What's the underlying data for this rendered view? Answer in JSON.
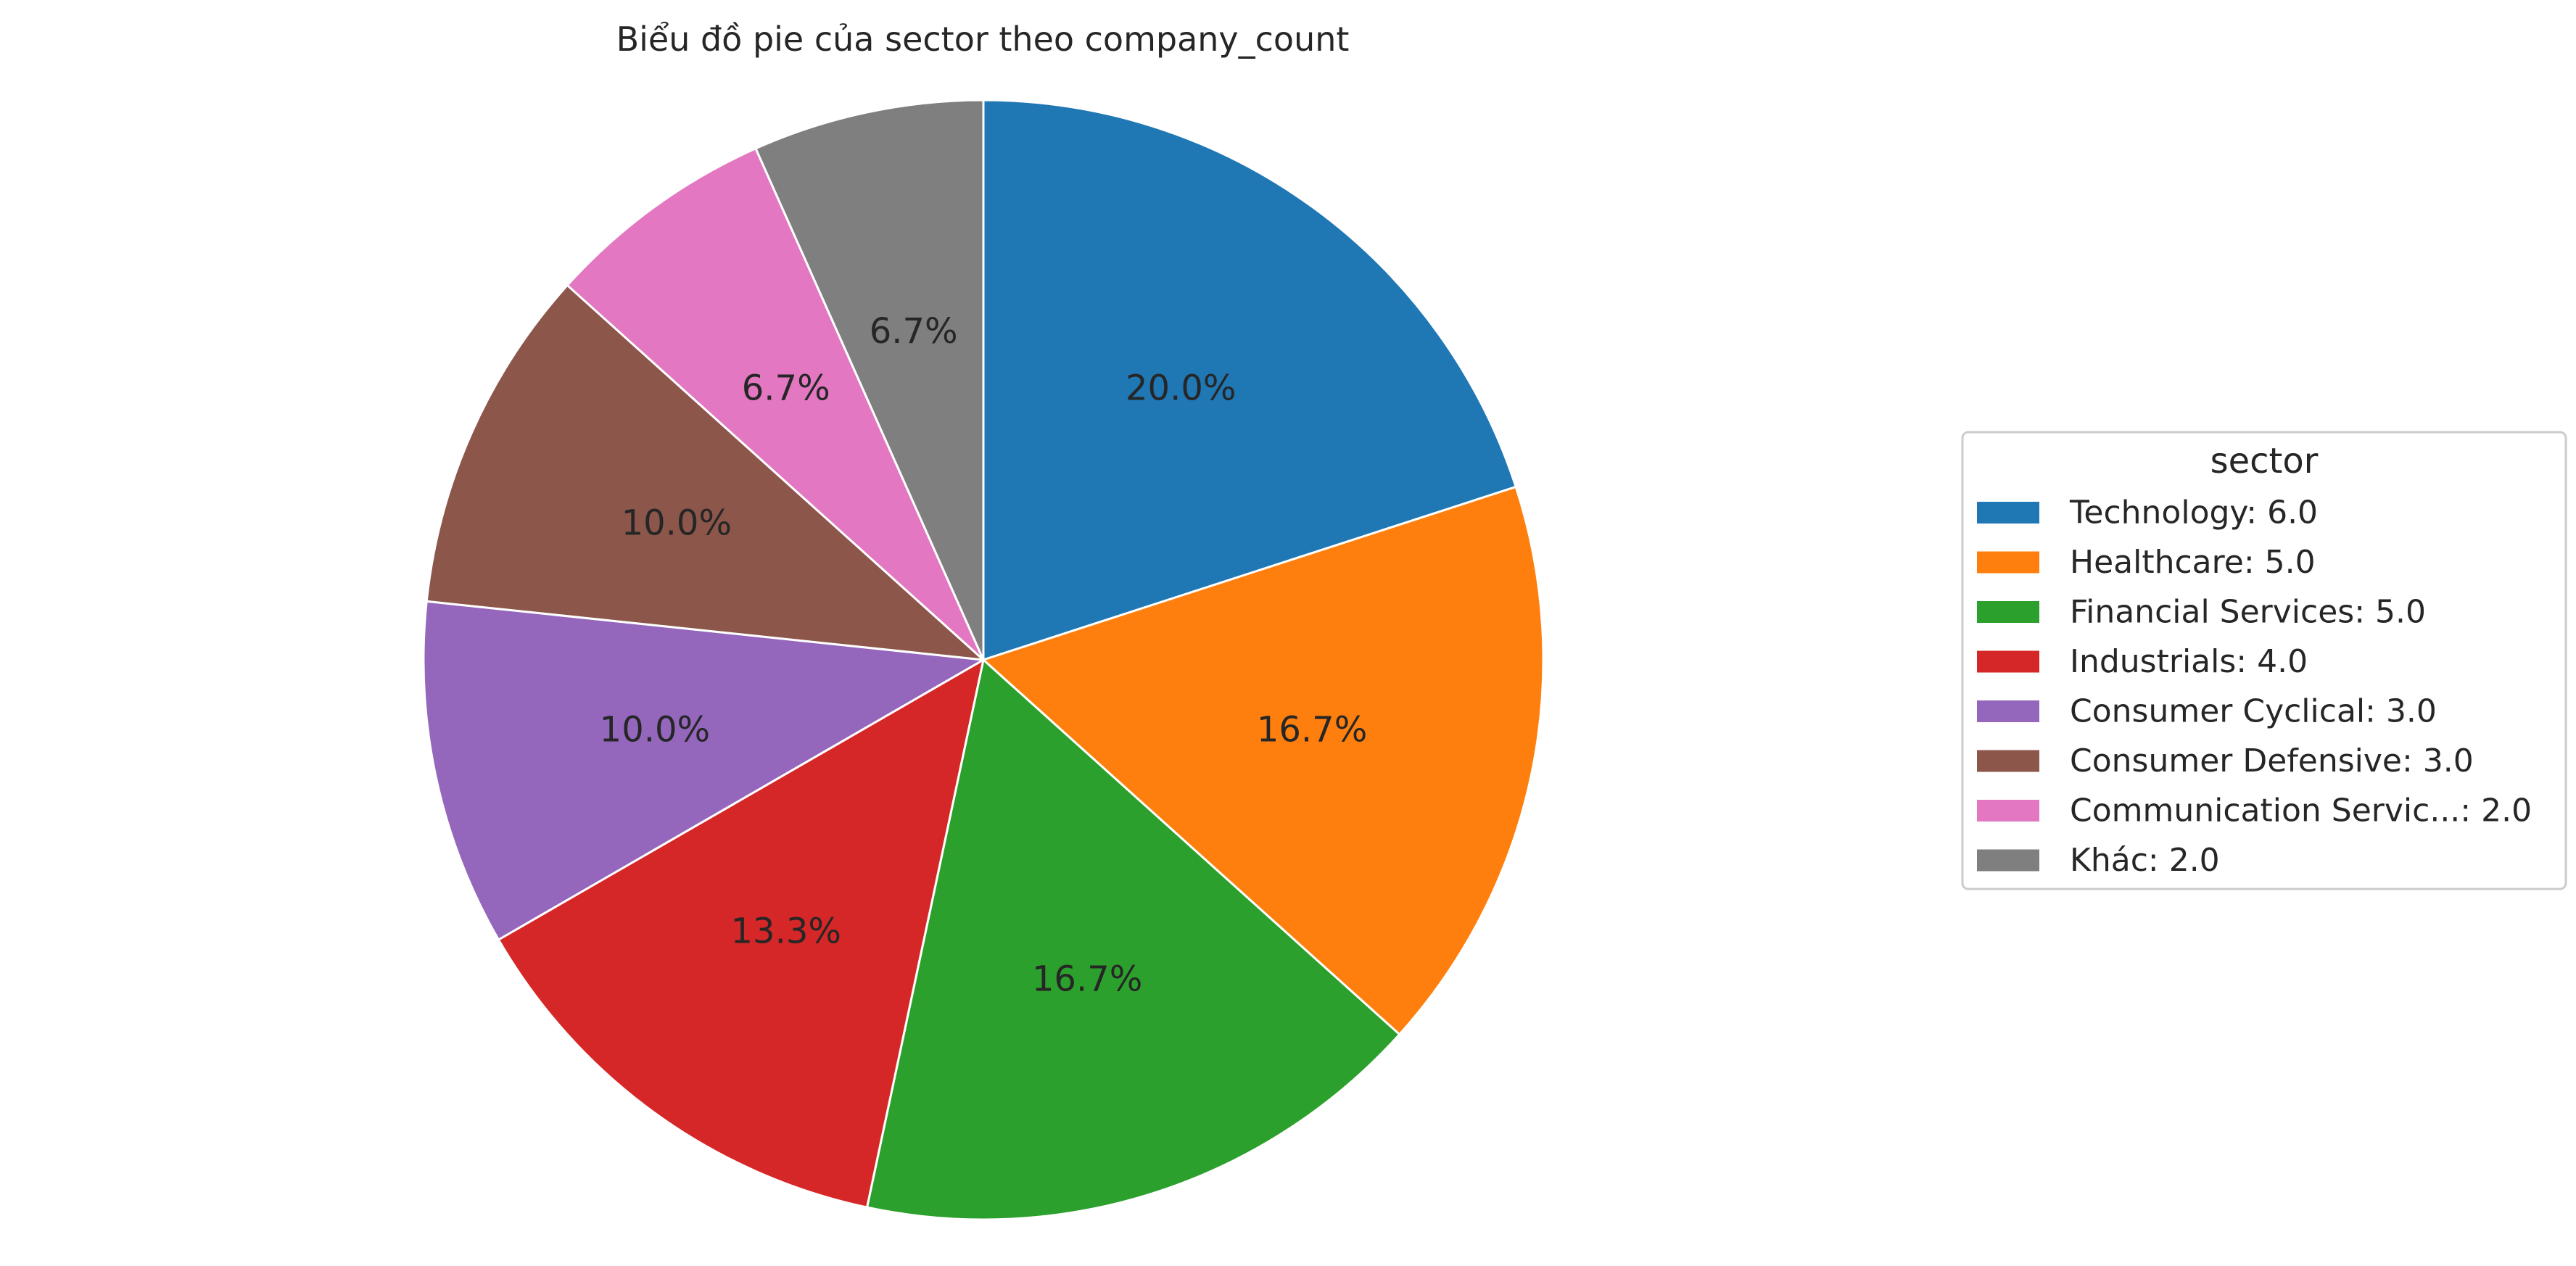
{
  "chart_data": {
    "type": "pie",
    "title": "Biểu đồ pie của sector theo company_count",
    "legend_title": "sector",
    "legend_placement": "center-right",
    "start_angle_deg": 90,
    "direction": "clockwise",
    "slices": [
      {
        "label": "Technology",
        "value": 6.0,
        "percent_label": "20.0%",
        "legend_label": "Technology: 6.0",
        "color": "#1f77b4"
      },
      {
        "label": "Healthcare",
        "value": 5.0,
        "percent_label": "16.7%",
        "legend_label": "Healthcare: 5.0",
        "color": "#ff7f0e"
      },
      {
        "label": "Financial Services",
        "value": 5.0,
        "percent_label": "16.7%",
        "legend_label": "Financial Services: 5.0",
        "color": "#2ca02c"
      },
      {
        "label": "Industrials",
        "value": 4.0,
        "percent_label": "13.3%",
        "legend_label": "Industrials: 4.0",
        "color": "#d62728"
      },
      {
        "label": "Consumer Cyclical",
        "value": 3.0,
        "percent_label": "10.0%",
        "legend_label": "Consumer Cyclical: 3.0",
        "color": "#9467bd"
      },
      {
        "label": "Consumer Defensive",
        "value": 3.0,
        "percent_label": "10.0%",
        "legend_label": "Consumer Defensive: 3.0",
        "color": "#8c564b"
      },
      {
        "label": "Communication Servic...",
        "value": 2.0,
        "percent_label": "6.7%",
        "legend_label": "Communication Servic...: 2.0",
        "color": "#e377c2"
      },
      {
        "label": "Khác",
        "value": 2.0,
        "percent_label": "6.7%",
        "legend_label": "Khác: 2.0",
        "color": "#7f7f7f"
      }
    ]
  }
}
